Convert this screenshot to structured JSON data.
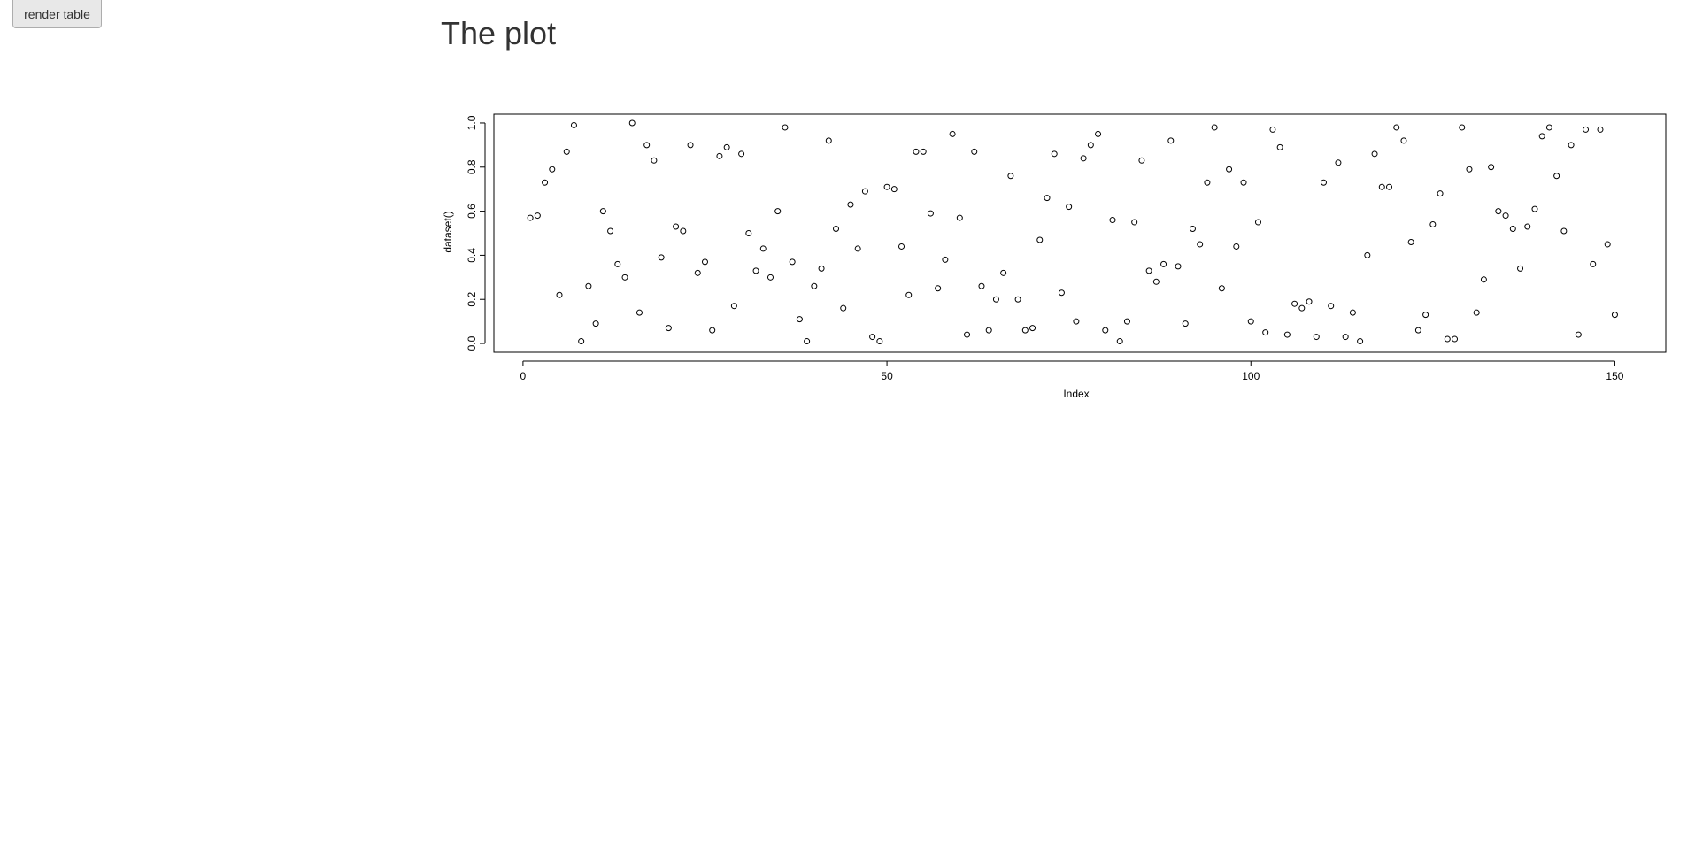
{
  "controls": {
    "render_table_label": "render table"
  },
  "page": {
    "title": "The plot"
  },
  "chart_data": {
    "type": "scatter",
    "title": "",
    "xlabel": "Index",
    "ylabel": "dataset()",
    "xlim": [
      -4,
      157
    ],
    "ylim": [
      -0.04,
      1.04
    ],
    "x_ticks": [
      0,
      50,
      100,
      150
    ],
    "y_ticks": [
      "0.0",
      "0.2",
      "0.4",
      "0.6",
      "0.8",
      "1.0"
    ],
    "y_tick_values": [
      0,
      0.2,
      0.4,
      0.6,
      0.8,
      1.0
    ],
    "grid": false,
    "marker": "open-circle",
    "y": [
      0.57,
      0.58,
      0.73,
      0.79,
      0.22,
      0.87,
      0.99,
      0.01,
      0.26,
      0.09,
      0.6,
      0.51,
      0.36,
      0.3,
      1.0,
      0.14,
      0.9,
      0.83,
      0.39,
      0.07,
      0.53,
      0.51,
      0.9,
      0.32,
      0.37,
      0.06,
      0.85,
      0.89,
      0.17,
      0.86,
      0.5,
      0.33,
      0.43,
      0.3,
      0.6,
      0.98,
      0.37,
      0.11,
      0.01,
      0.26,
      0.34,
      0.92,
      0.52,
      0.16,
      0.63,
      0.43,
      0.69,
      0.03,
      0.01,
      0.71,
      0.7,
      0.44,
      0.22,
      0.87,
      0.87,
      0.59,
      0.25,
      0.38,
      0.95,
      0.57,
      0.04,
      0.87,
      0.26,
      0.06,
      0.2,
      0.32,
      0.76,
      0.2,
      0.06,
      0.07,
      0.47,
      0.66,
      0.86,
      0.23,
      0.62,
      0.1,
      0.84,
      0.9,
      0.95,
      0.06,
      0.56,
      0.01,
      0.1,
      0.55,
      0.83,
      0.33,
      0.28,
      0.36,
      0.92,
      0.35,
      0.09,
      0.52,
      0.45,
      0.73,
      0.98,
      0.25,
      0.79,
      0.44,
      0.73,
      0.1,
      0.55,
      0.05,
      0.97,
      0.89,
      0.04,
      0.18,
      0.16,
      0.19,
      0.03,
      0.73,
      0.17,
      0.82,
      0.03,
      0.14,
      0.01,
      0.4,
      0.86,
      0.71,
      0.71,
      0.98,
      0.92,
      0.46,
      0.06,
      0.13,
      0.54,
      0.68,
      0.02,
      0.02,
      0.98,
      0.79,
      0.14,
      0.29,
      0.8,
      0.6,
      0.58,
      0.52,
      0.34,
      0.53,
      0.61,
      0.94,
      0.98,
      0.76,
      0.51,
      0.9,
      0.04,
      0.97,
      0.36,
      0.97,
      0.45,
      0.13
    ]
  }
}
